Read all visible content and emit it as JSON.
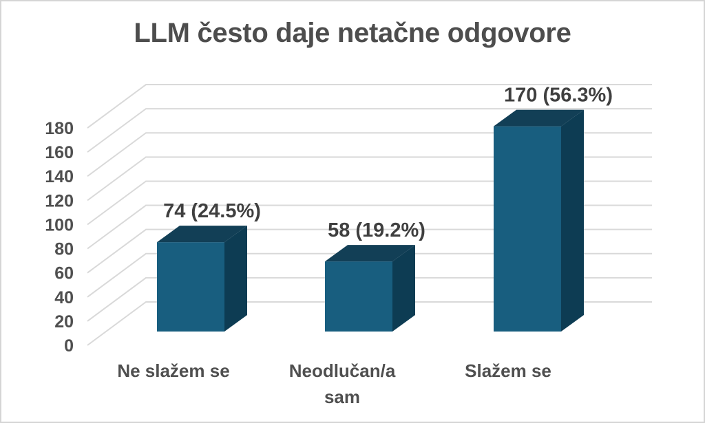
{
  "window": {
    "background": "#ffffff",
    "border_color": "#d5d5d5"
  },
  "chart_data": {
    "type": "bar",
    "projection": "3d-oblique",
    "title": "LLM često daje netačne odgovore",
    "categories": [
      "Ne slažem se",
      "Neodlučan/a\nsam",
      "Slažem se"
    ],
    "values": [
      74,
      58,
      170
    ],
    "data_labels": [
      "74 (24.5%)",
      "58 (19.2%)",
      "170 (56.3%)"
    ],
    "y_axis": {
      "min": 0,
      "max": 180,
      "step": 20,
      "tick_labels": [
        "0",
        "20",
        "40",
        "60",
        "80",
        "100",
        "120",
        "140",
        "160",
        "180"
      ]
    },
    "xlabel": "",
    "ylabel": "",
    "grid": true,
    "legend": false,
    "colors": {
      "bar_front": "#185E7F",
      "bar_side": "#0D3C53",
      "bar_top": "#123F56",
      "gridline": "#D9D9D9",
      "title_text": "#4D4D4D",
      "axis_text": "#4F4F4F",
      "data_label_text": "#3F3F3F"
    }
  }
}
